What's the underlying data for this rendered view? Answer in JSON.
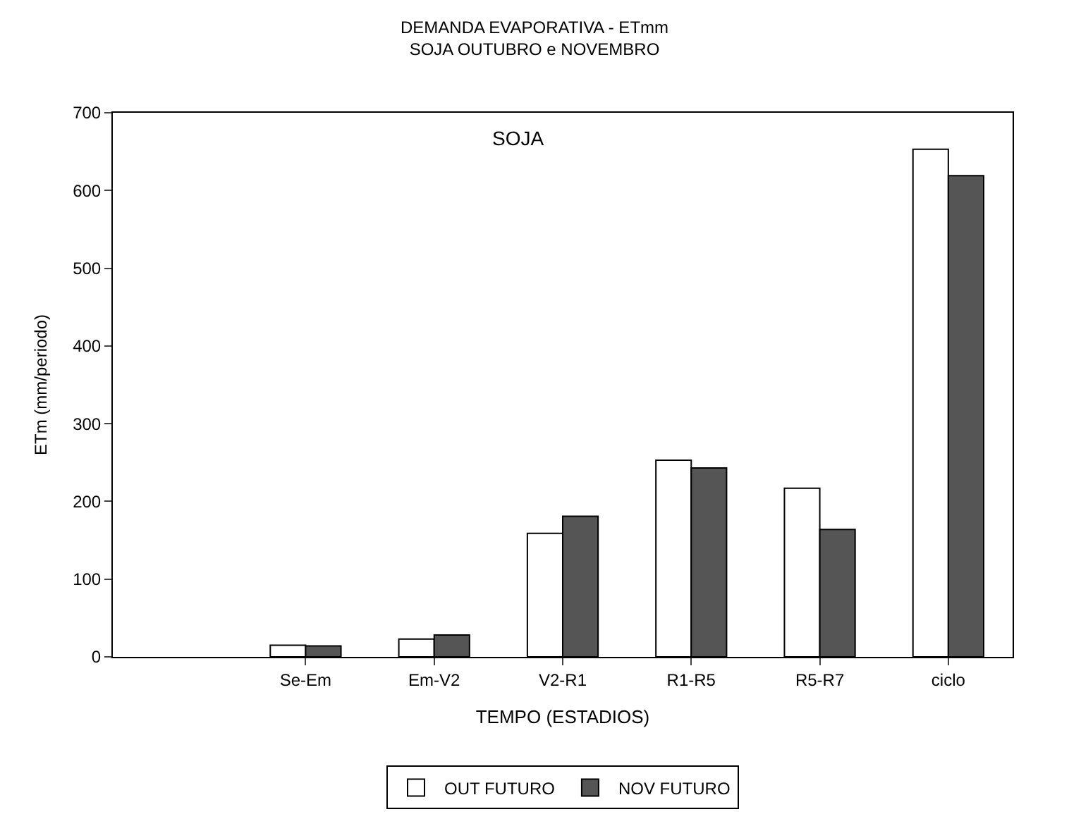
{
  "chart_data": {
    "type": "bar",
    "title": "DEMANDA EVAPORATIVA - ETmm",
    "subtitle": "SOJA OUTUBRO e NOVEMBRO",
    "xlabel": "TEMPO (ESTADIOS)",
    "ylabel": "ETm (mm/periodo)",
    "categories": [
      null,
      "Se-Em",
      "Em-V2",
      "V2-R1",
      "R1-R5",
      "R5-R7",
      "ciclo"
    ],
    "series": [
      {
        "name": "OUT FUTURO",
        "color": "#ffffff",
        "values": [
          null,
          15,
          23,
          159,
          253,
          217,
          653
        ]
      },
      {
        "name": "NOV FUTURO",
        "color": "#555555",
        "values": [
          null,
          14,
          28,
          181,
          243,
          164,
          619
        ]
      }
    ],
    "annotations": [
      "SOJA"
    ],
    "ylim": [
      0,
      700
    ],
    "yticks": [
      0,
      100,
      200,
      300,
      400,
      500,
      600,
      700
    ],
    "legend": "bottom"
  }
}
